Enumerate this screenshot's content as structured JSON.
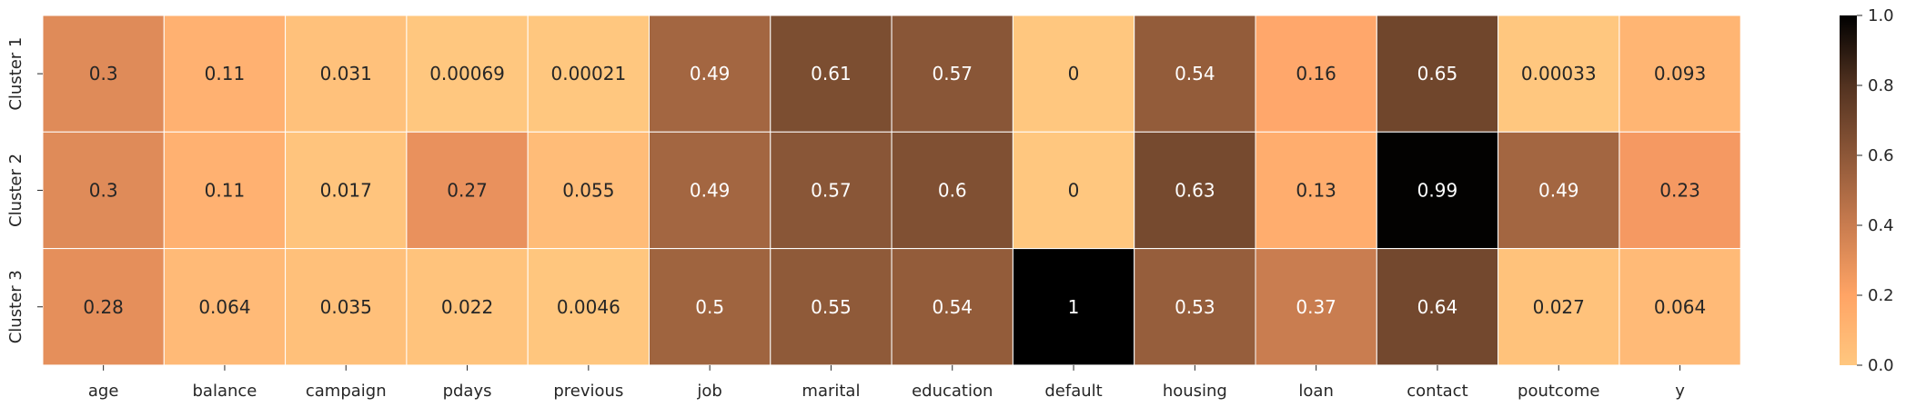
{
  "chart_data": {
    "type": "heatmap",
    "title": "",
    "xlabel": "",
    "ylabel": "",
    "columns": [
      "age",
      "balance",
      "campaign",
      "pdays",
      "previous",
      "job",
      "marital",
      "education",
      "default",
      "housing",
      "loan",
      "contact",
      "poutcome",
      "y"
    ],
    "rows": [
      "Cluster 1",
      "Cluster 2",
      "Cluster 3"
    ],
    "values": [
      [
        0.3,
        0.11,
        0.031,
        0.00069,
        0.00021,
        0.49,
        0.61,
        0.57,
        0,
        0.54,
        0.16,
        0.65,
        0.00033,
        0.093
      ],
      [
        0.3,
        0.11,
        0.017,
        0.27,
        0.055,
        0.49,
        0.57,
        0.6,
        0,
        0.63,
        0.13,
        0.99,
        0.49,
        0.23
      ],
      [
        0.28,
        0.064,
        0.035,
        0.022,
        0.0046,
        0.5,
        0.55,
        0.54,
        1,
        0.53,
        0.37,
        0.64,
        0.027,
        0.064
      ]
    ],
    "labels": [
      [
        "0.3",
        "0.11",
        "0.031",
        "0.00069",
        "0.00021",
        "0.49",
        "0.61",
        "0.57",
        "0",
        "0.54",
        "0.16",
        "0.65",
        "0.00033",
        "0.093"
      ],
      [
        "0.3",
        "0.11",
        "0.017",
        "0.27",
        "0.055",
        "0.49",
        "0.57",
        "0.6",
        "0",
        "0.63",
        "0.13",
        "0.99",
        "0.49",
        "0.23"
      ],
      [
        "0.28",
        "0.064",
        "0.035",
        "0.022",
        "0.0046",
        "0.5",
        "0.55",
        "0.54",
        "1",
        "0.53",
        "0.37",
        "0.64",
        "0.027",
        "0.064"
      ]
    ],
    "vmin": 0,
    "vmax": 1,
    "colormap": "copper_r",
    "colorbar_ticks": [
      "0.0",
      "0.2",
      "0.4",
      "0.6",
      "0.8",
      "1.0"
    ],
    "grid": false,
    "legend": "colorbar-right"
  },
  "colors": {
    "low": "#ffc77f",
    "high": "#000000",
    "cell_border": "#ffffff",
    "text_dark": "#262626",
    "text_light": "#ffffff"
  }
}
